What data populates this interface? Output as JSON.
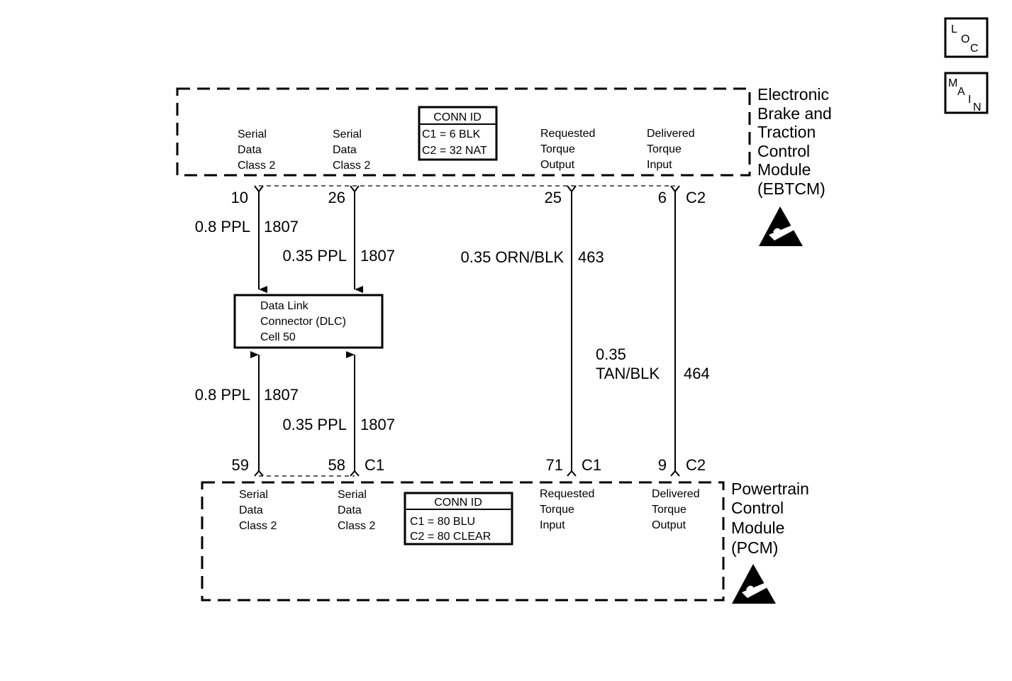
{
  "nav": {
    "loc": [
      "L",
      "O",
      "C"
    ],
    "main": [
      "M",
      "A",
      "I",
      "N"
    ]
  },
  "ebtcm": {
    "name": [
      "Electronic",
      "Brake and",
      "Traction",
      "Control",
      "Module",
      "(EBTCM)"
    ],
    "conn_id": {
      "title": "CONN ID",
      "c1": "C1 = 6 BLK",
      "c2": "C2 = 32 NAT"
    },
    "pins": [
      {
        "label": [
          "Serial",
          "Data",
          "Class 2"
        ],
        "pin": "10",
        "conn": ""
      },
      {
        "label": [
          "Serial",
          "Data",
          "Class 2"
        ],
        "pin": "26",
        "conn": ""
      },
      {
        "label": [
          "Requested",
          "Torque",
          "Output"
        ],
        "pin": "25",
        "conn": ""
      },
      {
        "label": [
          "Delivered",
          "Torque",
          "Input"
        ],
        "pin": "6",
        "conn": "C2"
      }
    ],
    "esd_icon": "esd-sensitive-icon"
  },
  "pcm": {
    "name": [
      "Powertrain",
      "Control",
      "Module",
      "(PCM)"
    ],
    "conn_id": {
      "title": "CONN ID",
      "c1": "C1 =  80 BLU",
      "c2": "C2 = 80 CLEAR"
    },
    "pins": [
      {
        "label": [
          "Serial",
          "Data",
          "Class 2"
        ],
        "pin": "59",
        "conn": ""
      },
      {
        "label": [
          "Serial",
          "Data",
          "Class 2"
        ],
        "pin": "58",
        "conn": "C1"
      },
      {
        "label": [
          "Requested",
          "Torque",
          "Input"
        ],
        "pin": "71",
        "conn": "C1"
      },
      {
        "label": [
          "Delivered",
          "Torque",
          "Output"
        ],
        "pin": "9",
        "conn": "C2"
      }
    ],
    "esd_icon": "esd-sensitive-icon"
  },
  "dlc": {
    "label": [
      "Data Link",
      "Connector (DLC)",
      "Cell 50"
    ]
  },
  "wires": {
    "top1": {
      "gauge": "0.8 PPL",
      "circuit": "1807"
    },
    "top2": {
      "gauge": "0.35 PPL",
      "circuit": "1807"
    },
    "req": {
      "gauge": "0.35 ORN/BLK",
      "circuit": "463"
    },
    "del": {
      "gauge": [
        "0.35",
        "TAN/BLK"
      ],
      "circuit": "464"
    },
    "bot1": {
      "gauge": "0.8 PPL",
      "circuit": "1807"
    },
    "bot2": {
      "gauge": "0.35 PPL",
      "circuit": "1807"
    }
  }
}
